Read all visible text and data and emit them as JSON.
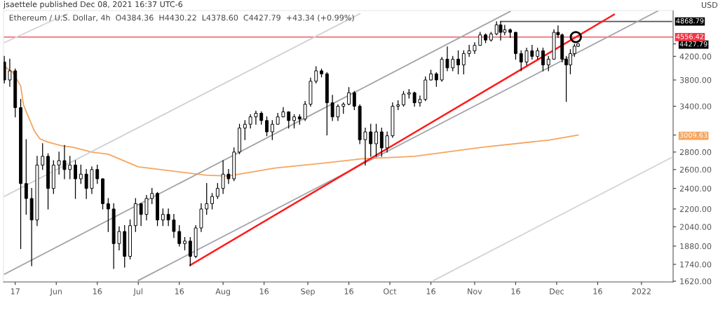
{
  "chart_data": {
    "type": "candlestick",
    "title": "Ethereum / U.S. Dollar, 4h  O4384.36  H4430.22  L4378.60  C4427.79  +43.34 (+0.99%)",
    "ylabel": "USD",
    "annotations": [
      "jsaettele published Dec 08, 2021 16:37 UTC-6"
    ],
    "color": "#000000",
    "x": [
      "2021-05-13",
      "2021-05-15",
      "2021-05-17",
      "2021-05-19",
      "2021-05-21",
      "2021-05-23",
      "2021-05-25",
      "2021-05-27",
      "2021-05-29",
      "2021-05-31",
      "2021-06-02",
      "2021-06-04",
      "2021-06-06",
      "2021-06-08",
      "2021-06-10",
      "2021-06-12",
      "2021-06-14",
      "2021-06-16",
      "2021-06-18",
      "2021-06-20",
      "2021-06-22",
      "2021-06-24",
      "2021-06-26",
      "2021-06-28",
      "2021-06-30",
      "2021-07-02",
      "2021-07-04",
      "2021-07-06",
      "2021-07-08",
      "2021-07-10",
      "2021-07-12",
      "2021-07-14",
      "2021-07-16",
      "2021-07-18",
      "2021-07-20",
      "2021-07-22",
      "2021-07-24",
      "2021-07-26",
      "2021-07-28",
      "2021-07-30",
      "2021-08-01",
      "2021-08-03",
      "2021-08-05",
      "2021-08-07",
      "2021-08-09",
      "2021-08-11",
      "2021-08-13",
      "2021-08-15",
      "2021-08-17",
      "2021-08-19",
      "2021-08-21",
      "2021-08-23",
      "2021-08-25",
      "2021-08-27",
      "2021-08-29",
      "2021-08-31",
      "2021-09-02",
      "2021-09-04",
      "2021-09-06",
      "2021-09-08",
      "2021-09-10",
      "2021-09-12",
      "2021-09-14",
      "2021-09-16",
      "2021-09-18",
      "2021-09-20",
      "2021-09-22",
      "2021-09-24",
      "2021-09-26",
      "2021-09-28",
      "2021-09-30",
      "2021-10-02",
      "2021-10-04",
      "2021-10-06",
      "2021-10-08",
      "2021-10-10",
      "2021-10-12",
      "2021-10-14",
      "2021-10-16",
      "2021-10-18",
      "2021-10-20",
      "2021-10-22",
      "2021-10-24",
      "2021-10-26",
      "2021-10-28",
      "2021-10-30",
      "2021-11-01",
      "2021-11-03",
      "2021-11-05",
      "2021-11-07",
      "2021-11-09",
      "2021-11-10T12:00",
      "2021-11-12",
      "2021-11-14",
      "2021-11-16",
      "2021-11-18",
      "2021-11-20",
      "2021-11-22",
      "2021-11-24",
      "2021-11-26",
      "2021-11-28",
      "2021-11-30",
      "2021-12-01T12:00",
      "2021-12-03",
      "2021-12-04T12:00",
      "2021-12-06",
      "2021-12-07T12:00",
      "2021-12-08T20:00"
    ],
    "ohlc": [
      [
        4100,
        4200,
        3750,
        3800
      ],
      [
        3800,
        4150,
        3700,
        3950
      ],
      [
        3950,
        3980,
        3250,
        3380
      ],
      [
        3380,
        3500,
        1860,
        2450
      ],
      [
        2450,
        2950,
        2150,
        2300
      ],
      [
        2300,
        2400,
        1730,
        2100
      ],
      [
        2100,
        2750,
        2050,
        2650
      ],
      [
        2650,
        2900,
        2600,
        2750
      ],
      [
        2750,
        2780,
        2200,
        2400
      ],
      [
        2400,
        2700,
        2350,
        2650
      ],
      [
        2650,
        2800,
        2550,
        2700
      ],
      [
        2700,
        2880,
        2500,
        2600
      ],
      [
        2600,
        2750,
        2500,
        2650
      ],
      [
        2650,
        2700,
        2300,
        2500
      ],
      [
        2500,
        2650,
        2450,
        2550
      ],
      [
        2550,
        2600,
        2300,
        2400
      ],
      [
        2400,
        2630,
        2350,
        2600
      ],
      [
        2600,
        2650,
        2450,
        2500
      ],
      [
        2500,
        2500,
        2200,
        2250
      ],
      [
        2250,
        2300,
        2000,
        2200
      ],
      [
        2200,
        2250,
        1710,
        1900
      ],
      [
        1900,
        2040,
        1850,
        2000
      ],
      [
        2000,
        2050,
        1720,
        1800
      ],
      [
        1800,
        2100,
        1780,
        2050
      ],
      [
        2050,
        2300,
        2000,
        2250
      ],
      [
        2250,
        2250,
        2050,
        2150
      ],
      [
        2150,
        2330,
        2100,
        2300
      ],
      [
        2300,
        2400,
        2250,
        2350
      ],
      [
        2350,
        2360,
        2050,
        2100
      ],
      [
        2100,
        2200,
        2050,
        2150
      ],
      [
        2150,
        2200,
        2050,
        2100
      ],
      [
        2100,
        2150,
        1950,
        2000
      ],
      [
        2000,
        2050,
        1880,
        1900
      ],
      [
        1900,
        1950,
        1850,
        1920
      ],
      [
        1920,
        1950,
        1730,
        1800
      ],
      [
        1800,
        2050,
        1790,
        2030
      ],
      [
        2030,
        2250,
        2000,
        2200
      ],
      [
        2200,
        2450,
        2150,
        2250
      ],
      [
        2250,
        2350,
        2200,
        2320
      ],
      [
        2320,
        2450,
        2300,
        2400
      ],
      [
        2400,
        2700,
        2350,
        2550
      ],
      [
        2550,
        2600,
        2450,
        2500
      ],
      [
        2500,
        2850,
        2480,
        2800
      ],
      [
        2800,
        3150,
        2780,
        3100
      ],
      [
        3100,
        3200,
        2950,
        3150
      ],
      [
        3150,
        3280,
        3100,
        3250
      ],
      [
        3250,
        3330,
        3150,
        3300
      ],
      [
        3300,
        3320,
        3150,
        3200
      ],
      [
        3200,
        3250,
        3000,
        3050
      ],
      [
        3050,
        3200,
        2950,
        3150
      ],
      [
        3150,
        3300,
        3150,
        3250
      ],
      [
        3250,
        3380,
        3250,
        3320
      ],
      [
        3320,
        3320,
        3100,
        3200
      ],
      [
        3200,
        3280,
        3100,
        3250
      ],
      [
        3250,
        3280,
        3150,
        3220
      ],
      [
        3220,
        3470,
        3200,
        3430
      ],
      [
        3430,
        3830,
        3400,
        3780
      ],
      [
        3780,
        4020,
        3750,
        3950
      ],
      [
        3950,
        3980,
        3850,
        3900
      ],
      [
        3900,
        3920,
        3010,
        3450
      ],
      [
        3450,
        3560,
        3200,
        3250
      ],
      [
        3250,
        3420,
        3200,
        3400
      ],
      [
        3400,
        3450,
        3300,
        3430
      ],
      [
        3430,
        3680,
        3420,
        3600
      ],
      [
        3600,
        3620,
        3350,
        3400
      ],
      [
        3400,
        3420,
        2900,
        2950
      ],
      [
        2950,
        3100,
        2650,
        3050
      ],
      [
        3050,
        3150,
        2750,
        2900
      ],
      [
        2900,
        3150,
        2750,
        3050
      ],
      [
        3050,
        3100,
        2750,
        2850
      ],
      [
        2850,
        3050,
        2800,
        3000
      ],
      [
        3000,
        3450,
        2980,
        3400
      ],
      [
        3400,
        3480,
        3350,
        3420
      ],
      [
        3420,
        3620,
        3400,
        3580
      ],
      [
        3580,
        3650,
        3520,
        3600
      ],
      [
        3600,
        3610,
        3400,
        3450
      ],
      [
        3450,
        3550,
        3400,
        3500
      ],
      [
        3500,
        3850,
        3480,
        3800
      ],
      [
        3800,
        3960,
        3800,
        3900
      ],
      [
        3900,
        3920,
        3700,
        3800
      ],
      [
        3800,
        4180,
        3780,
        4150
      ],
      [
        4150,
        4370,
        3950,
        4000
      ],
      [
        4000,
        4200,
        3950,
        4150
      ],
      [
        4150,
        4300,
        3900,
        4050
      ],
      [
        4050,
        4300,
        3900,
        4250
      ],
      [
        4250,
        4400,
        4200,
        4300
      ],
      [
        4300,
        4450,
        4250,
        4400
      ],
      [
        4400,
        4650,
        4400,
        4600
      ],
      [
        4600,
        4620,
        4450,
        4500
      ],
      [
        4500,
        4650,
        4480,
        4620
      ],
      [
        4620,
        4860,
        4600,
        4800
      ],
      [
        4800,
        4868.79,
        4500,
        4650
      ],
      [
        4650,
        4790,
        4600,
        4700
      ],
      [
        4700,
        4720,
        4550,
        4650
      ],
      [
        4650,
        4650,
        4150,
        4250
      ],
      [
        4250,
        4300,
        3950,
        4100
      ],
      [
        4100,
        4350,
        4050,
        4300
      ],
      [
        4300,
        4400,
        4150,
        4200
      ],
      [
        4200,
        4350,
        4150,
        4300
      ],
      [
        4300,
        4350,
        3950,
        4050
      ],
      [
        4050,
        4200,
        3950,
        4150
      ],
      [
        4150,
        4700,
        4150,
        4650
      ],
      [
        4650,
        4780,
        4550,
        4600
      ],
      [
        4600,
        4620,
        4100,
        4150
      ],
      [
        4150,
        4200,
        3470,
        4050
      ],
      [
        4050,
        4320,
        3900,
        4250
      ],
      [
        4250,
        4420,
        4200,
        4384.36
      ],
      [
        4384.36,
        4430.22,
        4378.6,
        4427.79
      ]
    ],
    "series": [
      {
        "type": "line",
        "color": "#f6a55f",
        "x": [
          "2021-05-13",
          "2021-05-16",
          "2021-05-19",
          "2021-05-20",
          "2021-05-24",
          "2021-05-26",
          "2021-05-29",
          "2021-06-03",
          "2021-06-07",
          "2021-06-14",
          "2021-06-20",
          "2021-07-01",
          "2021-07-26",
          "2021-08-03",
          "2021-08-20",
          "2021-09-06",
          "2021-09-20",
          "2021-10-10",
          "2021-11-04",
          "2021-11-28",
          "2021-12-08T20:00"
        ],
        "values": [
          4026,
          3930,
          3704,
          3420,
          3061,
          2962,
          2921,
          2876,
          2859,
          2800,
          2775,
          2630,
          2538,
          2530,
          2616,
          2669,
          2719,
          2750,
          2859,
          2945,
          3009.63
        ]
      },
      {
        "type": "line",
        "color": "#555555",
        "x": [
          "2021-11-10T12:00",
          "2022-01-12"
        ],
        "values": [
          4868.79,
          4868.79
        ],
        "value_labels": [
          null,
          "4868.79"
        ]
      },
      {
        "type": "line",
        "color": "#d4d4d4",
        "x": [
          "2021-05-13",
          "2021-06-05"
        ],
        "values": [
          4450,
          5030
        ]
      },
      {
        "type": "line",
        "color": "#cfcfcf",
        "x": [
          "2021-05-13",
          "2021-09-20"
        ],
        "values": [
          2320,
          5030
        ]
      },
      {
        "type": "line",
        "color": "#a3a3ab",
        "x": [
          "2021-05-13",
          "2021-11-14"
        ],
        "values": [
          1668,
          5080
        ]
      },
      {
        "type": "line",
        "color": "#a3a3ab",
        "x": [
          "2021-07-01",
          "2022-01-07"
        ],
        "values": [
          1625,
          5090
        ]
      },
      {
        "type": "line",
        "color": "#d4d4d4",
        "x": [
          "2021-10-17",
          "2022-01-12"
        ],
        "values": [
          1625,
          2735
        ]
      },
      {
        "type": "line",
        "color": "#ff1a1a",
        "x": [
          "2021-07-20",
          "2021-12-22"
        ],
        "values": [
          1734,
          5015
        ]
      },
      {
        "type": "scatter",
        "color": "#000000",
        "marker": "circle",
        "x": [
          "2021-12-08"
        ],
        "values": [
          4556.42
        ]
      }
    ],
    "ref_lines": [
      {
        "axis": "y",
        "value": 4556.42,
        "label": "4556.42",
        "color": "#f23645"
      }
    ],
    "log": "y",
    "xlim": [
      "2021-05-12T17:00",
      "2022-01-12T14:00"
    ],
    "xticks": [
      {
        "value": "2021-05-17",
        "label": "17"
      },
      {
        "value": "2021-06-01",
        "label": "Jun"
      },
      {
        "value": "2021-06-16",
        "label": "16"
      },
      {
        "value": "2021-07-01",
        "label": "Jul"
      },
      {
        "value": "2021-07-16",
        "label": "16"
      },
      {
        "value": "2021-08-01",
        "label": "Aug"
      },
      {
        "value": "2021-08-16",
        "label": "16"
      },
      {
        "value": "2021-09-01",
        "label": "Sep"
      },
      {
        "value": "2021-09-16",
        "label": "16"
      },
      {
        "value": "2021-10-01",
        "label": "Oct"
      },
      {
        "value": "2021-10-16",
        "label": "16"
      },
      {
        "value": "2021-11-01",
        "label": "Nov"
      },
      {
        "value": "2021-11-16",
        "label": "16"
      },
      {
        "value": "2021-12-01",
        "label": "Dec"
      },
      {
        "value": "2021-12-16",
        "label": "16"
      },
      {
        "value": "2022-01-01",
        "label": "2022"
      }
    ],
    "ylim": [
      1615,
      5100
    ],
    "yticks": [
      {
        "value": 1620,
        "label": "1620.00"
      },
      {
        "value": 1740,
        "label": "1740.00"
      },
      {
        "value": 1880,
        "label": "1880.00"
      },
      {
        "value": 2040,
        "label": "2040.00"
      },
      {
        "value": 2200,
        "label": "2200.00"
      },
      {
        "value": 2400,
        "label": "2400.00"
      },
      {
        "value": 2600,
        "label": "2600.00"
      },
      {
        "value": 2800,
        "label": "2800.00"
      },
      {
        "value": 3009.63,
        "label": "3009.63"
      },
      {
        "value": 3400,
        "label": "3400.00"
      },
      {
        "value": 3800,
        "label": "3800.00"
      },
      {
        "value": 4200,
        "label": "4200.00"
      },
      {
        "value": 4427.79,
        "label": "4427.79"
      }
    ],
    "grid": false,
    "legend": false
  }
}
